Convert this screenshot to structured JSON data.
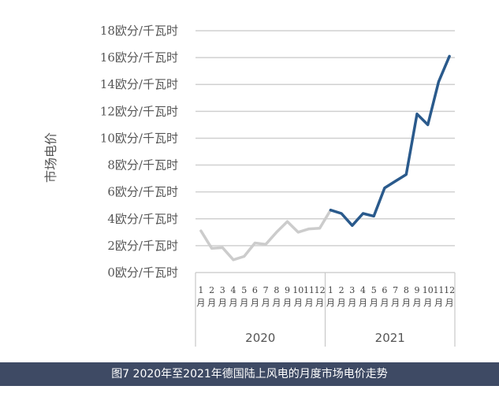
{
  "caption": "图7 2020年至2021年德国陆上风电的月度市场电价走势",
  "chart_data": {
    "type": "line",
    "ylabel": "市场电价",
    "xlabel": "",
    "title": "",
    "ylim": [
      0,
      18
    ],
    "yticks": [
      0,
      2,
      4,
      6,
      8,
      10,
      12,
      14,
      16,
      18
    ],
    "ytick_unit": "欧分/千瓦时",
    "grid": true,
    "years": [
      "2020",
      "2021"
    ],
    "month_numbers": [
      "1",
      "2",
      "3",
      "4",
      "5",
      "6",
      "7",
      "8",
      "9",
      "10",
      "11",
      "12",
      "1",
      "2",
      "3",
      "4",
      "5",
      "6",
      "7",
      "8",
      "9",
      "10",
      "11",
      "12"
    ],
    "month_suffix": "月",
    "series": [
      {
        "color": "#cccccc",
        "values": [
          3.1,
          1.8,
          1.85,
          0.95,
          1.2,
          2.2,
          2.1,
          3.0,
          3.8,
          3.0,
          3.25,
          3.3,
          4.65
        ]
      },
      {
        "color": "#2a5a8c",
        "values": [
          4.65,
          4.4,
          3.5,
          4.4,
          4.2,
          6.3,
          6.8,
          7.3,
          11.8,
          11.0,
          14.2,
          16.1
        ]
      }
    ]
  }
}
